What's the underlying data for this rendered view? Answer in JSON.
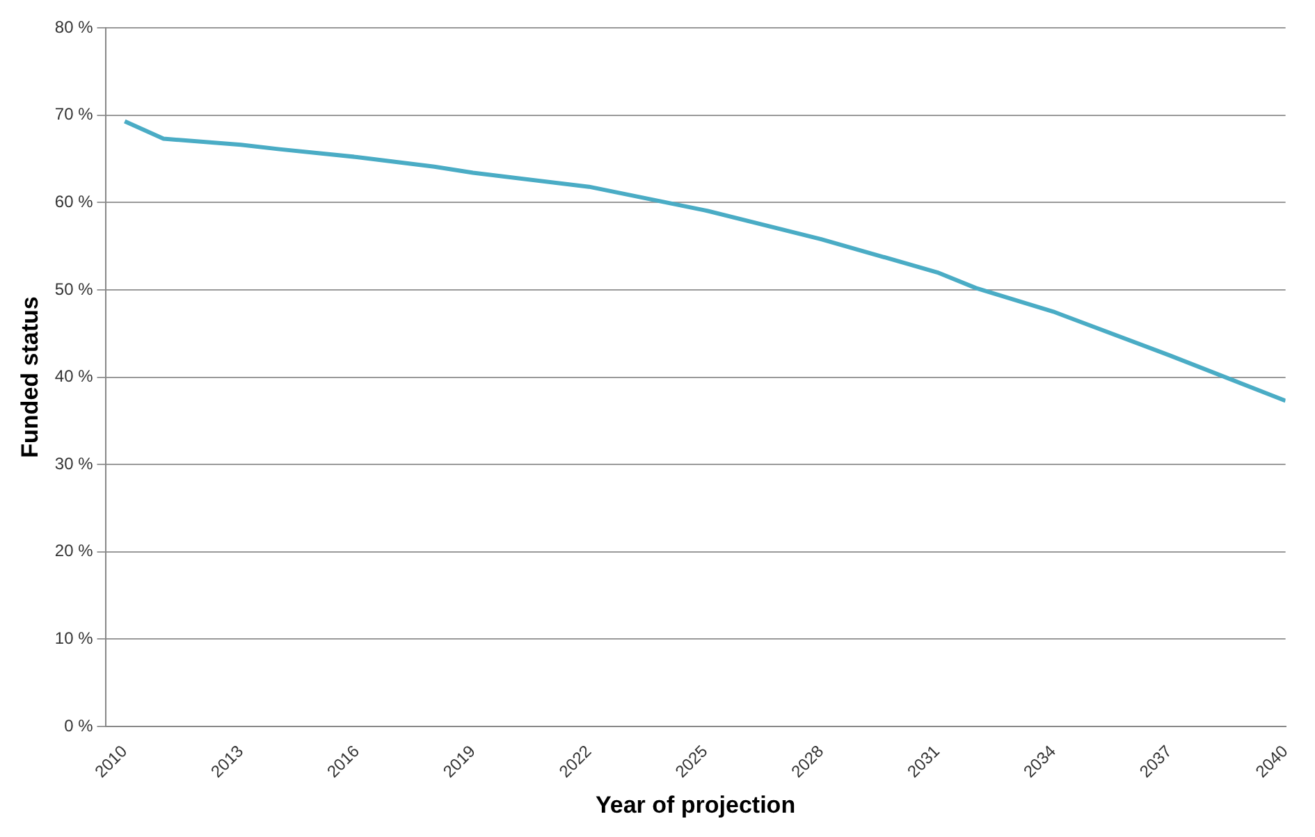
{
  "chart_data": {
    "type": "line",
    "xlabel": "Year of projection",
    "ylabel": "Funded status",
    "x": [
      2010,
      2011,
      2013,
      2014,
      2016,
      2018,
      2019,
      2022,
      2025,
      2028,
      2031,
      2032,
      2034,
      2037,
      2040
    ],
    "series": [
      {
        "color": "#4aacc5",
        "values": [
          69.3,
          67.3,
          66.6,
          66.1,
          65.2,
          64.1,
          63.4,
          61.8,
          59.1,
          55.8,
          52.0,
          50.2,
          47.5,
          42.5,
          37.3
        ]
      }
    ],
    "xlim": [
      2009.5,
      2040
    ],
    "xticks": [
      2010,
      2013,
      2016,
      2019,
      2022,
      2025,
      2028,
      2031,
      2034,
      2037,
      2040
    ],
    "ylim": [
      0,
      80
    ],
    "yticks": [
      {
        "value": 0,
        "label": "0 %"
      },
      {
        "value": 10,
        "label": "10 %"
      },
      {
        "value": 20,
        "label": "20 %"
      },
      {
        "value": 30,
        "label": "30 %"
      },
      {
        "value": 40,
        "label": "40 %"
      },
      {
        "value": 50,
        "label": "50 %"
      },
      {
        "value": 60,
        "label": "60 %"
      },
      {
        "value": 70,
        "label": "70 %"
      },
      {
        "value": 80,
        "label": "80 %"
      }
    ],
    "grid": "y",
    "legend": false,
    "marker": "none",
    "line_style": "solid"
  }
}
